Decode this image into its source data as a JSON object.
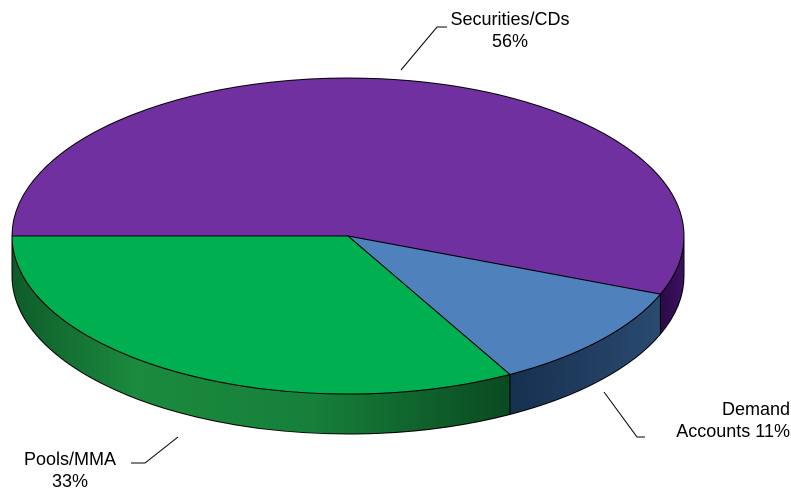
{
  "chart_data": {
    "type": "pie",
    "title": "",
    "slices": [
      {
        "label": "Securities/CDs",
        "value": 56,
        "value_label": "56%",
        "color": "#7030A0",
        "side_color": "#3A0F5C"
      },
      {
        "label": "Demand Accounts",
        "value": 11,
        "value_label": "11%",
        "color": "#4F81BD",
        "side_color": "#1F3A5F"
      },
      {
        "label": "Pools/MMA",
        "value": 33,
        "value_label": "33%",
        "color": "#00B050",
        "side_color": "#0E5C2A"
      }
    ],
    "legend": "none",
    "style": "3d-tilted"
  }
}
